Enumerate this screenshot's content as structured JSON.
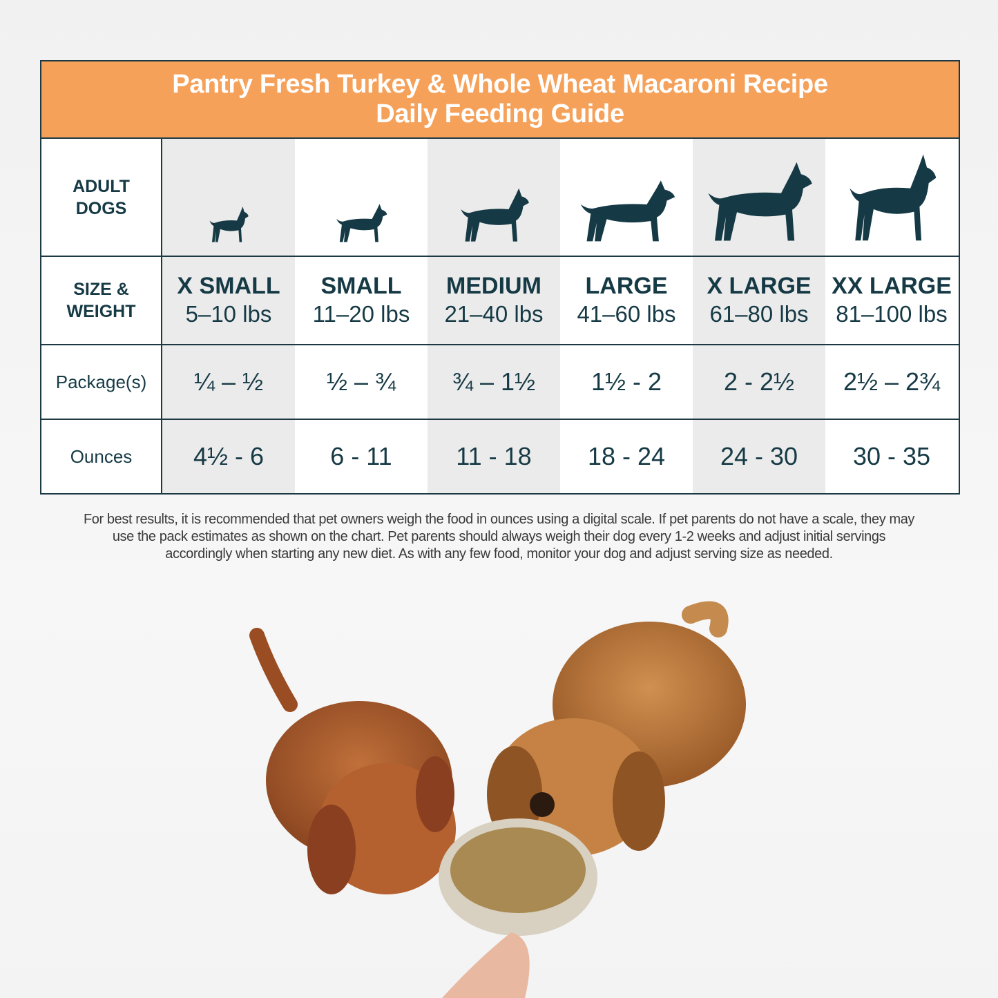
{
  "title": {
    "line1": "Pantry Fresh Turkey & Whole Wheat Macaroni Recipe",
    "line2": "Daily Feeding Guide"
  },
  "labels": {
    "adult": [
      "ADULT",
      "DOGS"
    ],
    "size": [
      "SIZE &",
      "WEIGHT"
    ],
    "packages": "Package(s)",
    "ounces": "Ounces"
  },
  "columns": [
    {
      "size": "X SMALL",
      "weight": "5–10 lbs",
      "packages": "¼ – ½",
      "ounces": "4½ - 6",
      "icon": "dog-xsmall-icon"
    },
    {
      "size": "SMALL",
      "weight": "11–20 lbs",
      "packages": "½ – ¾",
      "ounces": "6 - 11",
      "icon": "dog-small-icon"
    },
    {
      "size": "MEDIUM",
      "weight": "21–40 lbs",
      "packages": "¾ – 1½",
      "ounces": "11 - 18",
      "icon": "dog-medium-icon"
    },
    {
      "size": "LARGE",
      "weight": "41–60 lbs",
      "packages": "1½ - 2",
      "ounces": "18 - 24",
      "icon": "dog-large-icon"
    },
    {
      "size": "X LARGE",
      "weight": "61–80 lbs",
      "packages": "2 - 2½",
      "ounces": "24 - 30",
      "icon": "dog-xlarge-icon"
    },
    {
      "size": "XX LARGE",
      "weight": "81–100 lbs",
      "packages": "2½ – 2¾",
      "ounces": "30 - 35",
      "icon": "dog-xxlarge-icon"
    }
  ],
  "note": "For best results, it is recommended that pet owners weigh the food in ounces using a digital scale. If pet parents do not have a scale, they may use the pack estimates as shown on the chart. Pet parents should always weigh their dog every 1-2 weeks and adjust initial servings accordingly when starting any new diet. As with any few food, monitor your dog and adjust serving size as needed.",
  "colors": {
    "header": "#f6a15a",
    "ink": "#163a45",
    "shade": "#ebebeb"
  }
}
